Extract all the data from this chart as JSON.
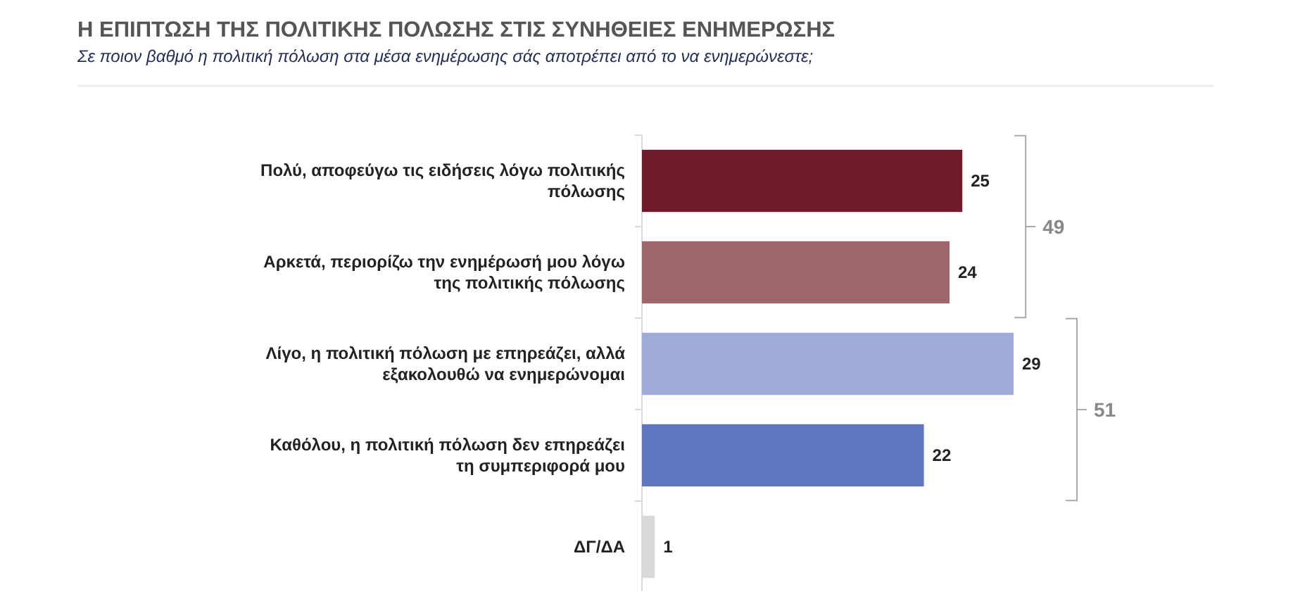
{
  "chart_data": {
    "type": "bar",
    "orientation": "horizontal",
    "title": "Η ΕΠΙΠΤΩΣΗ ΤΗΣ ΠΟΛΙΤΙΚΗΣ ΠΟΛΩΣΗΣ ΣΤΙΣ ΣΥΝΗΘΕΙΕΣ ΕΝΗΜΕΡΩΣΗΣ",
    "subtitle": "Σε ποιον βαθμό η πολιτική πόλωση στα μέσα ενημέρωσης σάς αποτρέπει από το να ενημερώνεστε;",
    "categories": [
      "Πολύ, αποφεύγω τις ειδήσεις λόγω πολιτικής πόλωσης",
      "Αρκετά, περιορίζω την ενημέρωσή μου λόγω της πολιτικής πόλωσης",
      "Λίγο, η πολιτική πόλωση με επηρεάζει, αλλά εξακολουθώ να ενημερώνομαι",
      "Καθόλου, η πολιτική πόλωση δεν επηρεάζει τη συμπεριφορά μου",
      "ΔΓ/ΔΑ"
    ],
    "values": [
      25,
      24,
      29,
      22,
      1
    ],
    "colors": [
      "#6f1c2a",
      "#9c666b",
      "#9eaad8",
      "#6075c0",
      "#d9d9d9"
    ],
    "data_labels": true,
    "annotations": [
      "49",
      "51"
    ]
  }
}
